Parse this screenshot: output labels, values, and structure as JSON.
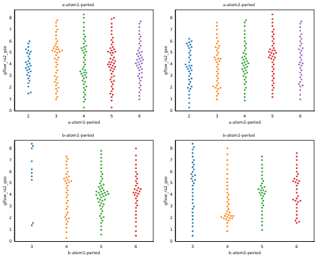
{
  "chart_data": [
    {
      "type": "swarm",
      "title": "a-atom1-period",
      "x_label": "a-atom1-period",
      "y_label": "gflow_rs2_gso",
      "categories": [
        "2",
        "3",
        "4",
        "5",
        "6"
      ],
      "values": [
        [
          2.1,
          2.4,
          2.6,
          2.8,
          3.0,
          3.1,
          3.3,
          3.4,
          3.5,
          3.6,
          3.7,
          3.8,
          4.0,
          4.1,
          4.3,
          4.5,
          4.7,
          4.9,
          5.0,
          5.1,
          5.2,
          5.3,
          5.5,
          5.8,
          6.0,
          1.6,
          1.5,
          4.2,
          3.9
        ],
        [
          1.0,
          1.2,
          1.5,
          1.7,
          1.9,
          2.0,
          2.2,
          2.4,
          2.5,
          2.7,
          2.9,
          3.0,
          3.3,
          3.5,
          3.8,
          4.0,
          4.2,
          4.4,
          4.6,
          4.8,
          5.0,
          5.1,
          5.2,
          5.2,
          5.3,
          5.3,
          5.4,
          5.5,
          5.6,
          5.8,
          6.0,
          6.2,
          6.5,
          6.8,
          7.0,
          7.3,
          7.6,
          7.8,
          4.5,
          5.1
        ],
        [
          0.3,
          0.8,
          1.0,
          1.2,
          1.4,
          1.6,
          1.8,
          2.0,
          2.1,
          2.3,
          2.5,
          2.6,
          2.8,
          3.0,
          3.1,
          3.2,
          3.3,
          3.4,
          3.5,
          3.6,
          3.8,
          4.0,
          4.2,
          4.4,
          4.6,
          4.8,
          5.0,
          5.1,
          5.2,
          5.3,
          5.4,
          5.5,
          5.6,
          5.8,
          6.0,
          6.2,
          6.4,
          6.6,
          6.9,
          7.2,
          7.6,
          8.0,
          8.3,
          3.3,
          2.9
        ],
        [
          0.3,
          0.9,
          1.2,
          1.4,
          1.5,
          1.7,
          1.9,
          2.1,
          2.3,
          2.5,
          2.7,
          2.9,
          3.0,
          3.2,
          3.4,
          3.5,
          3.6,
          3.7,
          3.8,
          3.9,
          4.0,
          4.0,
          4.1,
          4.2,
          4.3,
          4.4,
          4.5,
          4.6,
          4.8,
          5.0,
          5.0,
          5.1,
          5.2,
          5.3,
          5.4,
          5.5,
          5.7,
          5.9,
          6.1,
          6.3,
          6.6,
          6.9,
          7.2,
          7.5,
          7.9,
          8.0,
          3.8,
          4.2,
          5.1,
          2.6
        ],
        [
          1.0,
          1.3,
          1.6,
          1.8,
          2.0,
          2.2,
          2.4,
          2.6,
          2.8,
          3.0,
          3.2,
          3.3,
          3.5,
          3.6,
          3.8,
          3.9,
          4.0,
          4.1,
          4.2,
          4.3,
          4.4,
          4.5,
          4.6,
          4.7,
          4.8,
          4.9,
          5.0,
          5.2,
          5.4,
          5.6,
          5.8,
          6.0,
          6.2,
          6.4,
          6.6,
          6.9,
          7.2,
          7.5,
          7.7,
          4.1,
          4.4,
          3.7,
          5.1,
          2.9
        ]
      ],
      "colors": [
        "#1f77b4",
        "#ff7f0e",
        "#2ca02c",
        "#d62728",
        "#9467bd"
      ],
      "ylim": [
        0,
        8.7
      ],
      "yticks": [
        0,
        1,
        2,
        3,
        4,
        5,
        6,
        7,
        8
      ],
      "grid": false
    },
    {
      "type": "swarm",
      "title": "a-atom2-period",
      "x_label": "a-atom2-period",
      "y_label": "gflow_rs2_gso",
      "categories": [
        "2",
        "3",
        "4",
        "5",
        "6"
      ],
      "values": [
        [
          0.3,
          0.7,
          1.1,
          1.4,
          1.7,
          1.9,
          2.1,
          2.3,
          2.5,
          2.7,
          2.8,
          3.0,
          3.2,
          3.4,
          3.5,
          3.6,
          3.7,
          3.8,
          3.9,
          4.0,
          4.2,
          4.4,
          4.6,
          4.8,
          5.0,
          5.2,
          5.4,
          5.5,
          5.6,
          5.7,
          5.8,
          5.9,
          6.0,
          6.2,
          2.0,
          3.9
        ],
        [
          1.0,
          1.3,
          1.5,
          1.7,
          1.9,
          2.0,
          2.1,
          2.2,
          2.4,
          2.6,
          2.8,
          3.0,
          3.2,
          3.4,
          3.6,
          3.8,
          4.0,
          4.2,
          4.3,
          4.4,
          4.5,
          4.6,
          4.8,
          5.0,
          5.2,
          5.4,
          5.5,
          5.6,
          5.8,
          6.0,
          6.3,
          6.6,
          7.0,
          7.3,
          7.6,
          2.0,
          4.5
        ],
        [
          0.9,
          1.2,
          1.5,
          1.8,
          2.0,
          2.3,
          2.5,
          2.7,
          2.9,
          3.0,
          3.2,
          3.4,
          3.5,
          3.6,
          3.8,
          3.9,
          4.0,
          4.1,
          4.2,
          4.3,
          4.4,
          4.5,
          4.7,
          4.9,
          5.0,
          5.2,
          5.4,
          5.6,
          5.8,
          6.0,
          6.3,
          6.6,
          6.9,
          7.3,
          7.6,
          7.8,
          3.7,
          4.1,
          4.6,
          3.3
        ],
        [
          1.2,
          1.5,
          1.8,
          2.0,
          2.2,
          2.4,
          2.6,
          2.8,
          3.0,
          3.2,
          3.4,
          3.6,
          3.8,
          4.0,
          4.2,
          4.4,
          4.5,
          4.6,
          4.7,
          4.8,
          4.9,
          5.0,
          5.1,
          5.2,
          5.3,
          5.4,
          5.6,
          5.8,
          6.0,
          6.2,
          6.4,
          6.6,
          6.8,
          7.0,
          7.3,
          7.6,
          7.9,
          8.3,
          4.6,
          5.0,
          5.2
        ],
        [
          1.0,
          1.4,
          1.8,
          2.1,
          2.3,
          2.5,
          2.7,
          2.9,
          3.1,
          3.3,
          3.5,
          3.7,
          3.9,
          4.0,
          4.2,
          4.4,
          4.6,
          4.8,
          5.0,
          5.2,
          5.4,
          5.6,
          5.8,
          6.0,
          6.2,
          6.4,
          6.6,
          6.9,
          7.2,
          7.5,
          7.7,
          2.2,
          4.1,
          5.3
        ]
      ],
      "colors": [
        "#1f77b4",
        "#ff7f0e",
        "#2ca02c",
        "#d62728",
        "#9467bd"
      ],
      "ylim": [
        0,
        8.7
      ],
      "yticks": [
        0,
        1,
        2,
        3,
        4,
        5,
        6,
        7,
        8
      ],
      "grid": false
    },
    {
      "type": "swarm",
      "title": "b-atom1-period",
      "x_label": "b-atom1-period",
      "y_label": "gflow_rs2_gso",
      "categories": [
        "3",
        "4",
        "5",
        "6"
      ],
      "values": [
        [
          1.4,
          1.6,
          5.3,
          5.6,
          5.9,
          6.2,
          6.9,
          8.0,
          8.2,
          8.4
        ],
        [
          0.3,
          0.8,
          1.2,
          1.5,
          1.7,
          1.9,
          2.1,
          2.3,
          2.5,
          2.8,
          3.0,
          3.3,
          3.5,
          3.8,
          4.0,
          4.2,
          4.4,
          4.6,
          4.8,
          5.0,
          5.1,
          5.2,
          5.3,
          5.4,
          5.5,
          5.6,
          5.8,
          6.0,
          6.3,
          6.6,
          6.9,
          7.1,
          7.3,
          2.0,
          5.2
        ],
        [
          0.6,
          1.0,
          1.3,
          1.6,
          1.8,
          2.0,
          2.2,
          2.4,
          2.6,
          2.8,
          3.0,
          3.1,
          3.2,
          3.3,
          3.4,
          3.5,
          3.6,
          3.7,
          3.8,
          3.9,
          4.0,
          4.0,
          4.1,
          4.1,
          4.2,
          4.2,
          4.3,
          4.3,
          4.4,
          4.5,
          4.6,
          4.7,
          4.8,
          4.9,
          5.0,
          5.2,
          5.4,
          5.6,
          5.8,
          6.0,
          6.3,
          6.6,
          6.9,
          7.2,
          7.5,
          7.8,
          4.0,
          4.3,
          3.6,
          2.1
        ],
        [
          0.5,
          0.9,
          1.3,
          1.7,
          2.0,
          2.3,
          2.6,
          2.9,
          3.1,
          3.3,
          3.5,
          3.7,
          3.9,
          4.0,
          4.1,
          4.2,
          4.3,
          4.4,
          4.5,
          4.6,
          4.8,
          5.0,
          5.2,
          5.4,
          5.6,
          5.8,
          6.0,
          6.3,
          6.6,
          7.0,
          7.4,
          8.0,
          4.2,
          4.5
        ]
      ],
      "colors": [
        "#1f77b4",
        "#ff7f0e",
        "#2ca02c",
        "#d62728"
      ],
      "ylim": [
        0,
        8.7
      ],
      "yticks": [
        0,
        1,
        2,
        3,
        4,
        5,
        6,
        7,
        8
      ],
      "grid": false
    },
    {
      "type": "swarm",
      "title": "b-atom2-period",
      "x_label": "b-atom2-period",
      "y_label": "gflow_rs2_gso",
      "categories": [
        "3",
        "4",
        "5",
        "6"
      ],
      "values": [
        [
          0.5,
          0.9,
          1.3,
          1.6,
          1.9,
          2.2,
          2.5,
          2.8,
          3.0,
          3.3,
          3.6,
          3.9,
          4.2,
          4.5,
          4.8,
          5.0,
          5.2,
          5.4,
          5.6,
          5.8,
          6.0,
          6.2,
          6.4,
          6.6,
          6.8,
          7.0,
          7.3,
          7.6,
          7.9,
          8.1,
          8.4,
          5.3,
          5.7
        ],
        [
          0.9,
          1.3,
          1.6,
          1.8,
          1.9,
          2.0,
          2.0,
          2.1,
          2.1,
          2.2,
          2.2,
          2.3,
          2.4,
          2.5,
          2.6,
          2.8,
          3.0,
          3.2,
          3.4,
          3.6,
          3.8,
          4.0,
          4.2,
          4.5,
          4.8,
          5.1,
          5.4,
          5.8,
          6.2,
          6.6,
          7.0,
          7.5,
          8.0,
          2.0,
          2.2
        ],
        [
          1.0,
          1.4,
          1.7,
          2.0,
          2.3,
          2.6,
          2.9,
          3.1,
          3.3,
          3.5,
          3.7,
          3.9,
          4.0,
          4.1,
          4.2,
          4.3,
          4.4,
          4.5,
          4.6,
          4.7,
          4.8,
          5.0,
          5.2,
          5.4,
          5.7,
          6.0,
          6.3,
          6.6,
          7.0,
          7.3,
          4.2,
          4.4
        ],
        [
          1.6,
          1.7,
          1.8,
          2.0,
          2.3,
          2.6,
          2.9,
          3.2,
          3.4,
          3.5,
          3.6,
          3.7,
          3.9,
          4.2,
          4.5,
          4.8,
          5.0,
          5.1,
          5.2,
          5.3,
          5.4,
          5.6,
          5.8,
          6.0,
          6.3,
          6.6,
          7.0,
          7.3,
          7.6,
          3.5,
          5.2
        ]
      ],
      "colors": [
        "#1f77b4",
        "#ff7f0e",
        "#2ca02c",
        "#d62728"
      ],
      "ylim": [
        0,
        8.7
      ],
      "yticks": [
        0,
        1,
        2,
        3,
        4,
        5,
        6,
        7,
        8
      ],
      "grid": false
    }
  ]
}
